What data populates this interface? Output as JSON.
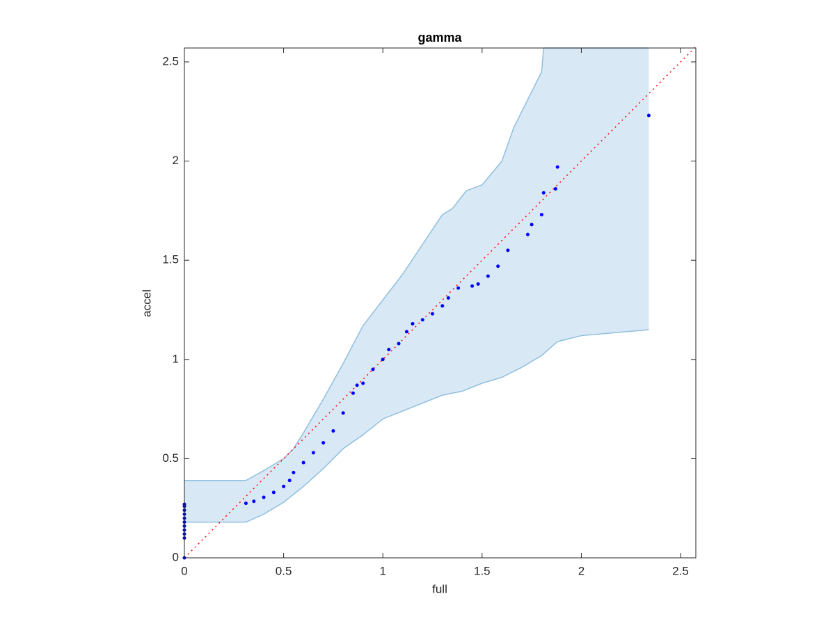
{
  "chart_data": {
    "type": "scatter",
    "title": "gamma",
    "x_label": "full",
    "y_label": "accel",
    "xlim": [
      0,
      2.577
    ],
    "ylim": [
      0,
      2.57
    ],
    "xticks": [
      0,
      0.5,
      1,
      1.5,
      2,
      2.5
    ],
    "yticks": [
      0,
      0.5,
      1,
      1.5,
      2,
      2.5
    ],
    "color": "#0000ff",
    "x": [
      0,
      0,
      0,
      0,
      0,
      0,
      0,
      0,
      0,
      0,
      0,
      0.31,
      0.35,
      0.4,
      0.45,
      0.5,
      0.53,
      0.55,
      0.6,
      0.65,
      0.7,
      0.75,
      0.8,
      0.85,
      0.87,
      0.9,
      0.95,
      1.0,
      1.03,
      1.08,
      1.12,
      1.15,
      1.2,
      1.25,
      1.3,
      1.33,
      1.38,
      1.45,
      1.48,
      1.53,
      1.58,
      1.63,
      1.73,
      1.75,
      1.8,
      1.81,
      1.87,
      1.88,
      2.34
    ],
    "values": [
      0,
      0.1,
      0.12,
      0.14,
      0.16,
      0.18,
      0.2,
      0.22,
      0.24,
      0.26,
      0.27,
      0.275,
      0.285,
      0.305,
      0.33,
      0.36,
      0.39,
      0.43,
      0.48,
      0.53,
      0.58,
      0.64,
      0.73,
      0.83,
      0.87,
      0.88,
      0.95,
      1.0,
      1.05,
      1.08,
      1.14,
      1.18,
      1.2,
      1.23,
      1.27,
      1.31,
      1.36,
      1.37,
      1.38,
      1.42,
      1.47,
      1.55,
      1.63,
      1.68,
      1.73,
      1.84,
      1.86,
      1.97,
      2.23
    ],
    "band": {
      "color": "#d9e8f5",
      "edge_color": "#8fbfdd",
      "x_upper": [
        0,
        0.31,
        0.4,
        0.5,
        0.55,
        0.6,
        0.7,
        0.8,
        0.9,
        1.0,
        1.1,
        1.2,
        1.3,
        1.35,
        1.42,
        1.5,
        1.6,
        1.66,
        1.75,
        1.8,
        1.81,
        2.34
      ],
      "upper": [
        0.39,
        0.39,
        0.44,
        0.5,
        0.55,
        0.63,
        0.8,
        0.98,
        1.17,
        1.3,
        1.43,
        1.58,
        1.73,
        1.76,
        1.85,
        1.88,
        2.0,
        2.17,
        2.35,
        2.45,
        2.57,
        2.57
      ],
      "x_lower": [
        0,
        0.31,
        0.4,
        0.5,
        0.6,
        0.7,
        0.8,
        0.9,
        1.0,
        1.1,
        1.2,
        1.3,
        1.4,
        1.5,
        1.6,
        1.7,
        1.8,
        1.88,
        2.0,
        2.34
      ],
      "lower": [
        0.18,
        0.18,
        0.22,
        0.28,
        0.36,
        0.45,
        0.55,
        0.62,
        0.7,
        0.74,
        0.78,
        0.82,
        0.84,
        0.88,
        0.91,
        0.96,
        1.02,
        1.09,
        1.12,
        1.15
      ]
    },
    "reference_line": {
      "color": "#ff0000",
      "x": [
        0,
        2.577
      ],
      "y": [
        0,
        2.577
      ]
    }
  }
}
